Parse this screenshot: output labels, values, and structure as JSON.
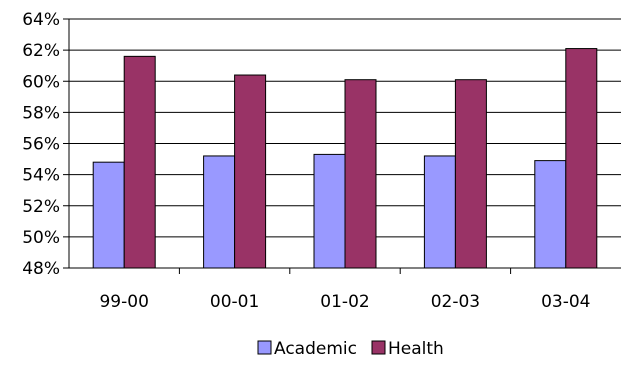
{
  "chart_data": {
    "type": "bar",
    "categories": [
      "99-00",
      "00-01",
      "01-02",
      "02-03",
      "03-04"
    ],
    "series": [
      {
        "name": "Academic",
        "values": [
          54.8,
          55.2,
          55.3,
          55.2,
          54.9
        ],
        "color": "#9999ff"
      },
      {
        "name": "Health",
        "values": [
          61.6,
          60.4,
          60.1,
          60.1,
          62.1
        ],
        "color": "#993366"
      }
    ],
    "ylim": [
      48,
      64
    ],
    "yticks": [
      48,
      50,
      52,
      54,
      56,
      58,
      60,
      62,
      64
    ],
    "ytick_suffix": "%",
    "grid": true,
    "legend_position": "bottom",
    "title": "",
    "xlabel": "",
    "ylabel": ""
  }
}
